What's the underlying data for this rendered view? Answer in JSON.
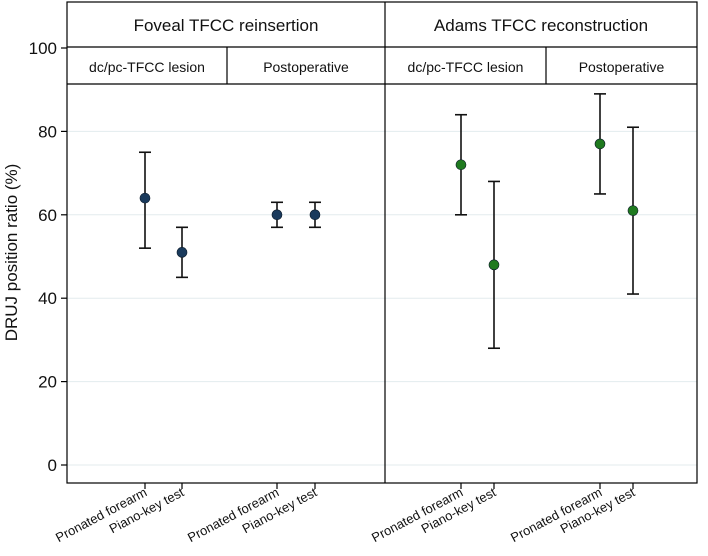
{
  "chart_data": {
    "type": "scatter",
    "ylabel": "DRUJ position ratio (%)",
    "ylim": [
      0,
      100
    ],
    "yticks": [
      0,
      20,
      40,
      60,
      80,
      100
    ],
    "grid": true,
    "panels": [
      {
        "title": "Foveal TFCC reinsertion",
        "marker_color": "#1a3a5c",
        "groups": [
          {
            "label": "dc/pc-TFCC lesion",
            "points": [
              {
                "x": "Pronated forearm",
                "y": 64,
                "low": 52,
                "high": 75
              },
              {
                "x": "Piano-key test",
                "y": 51,
                "low": 45,
                "high": 57
              }
            ]
          },
          {
            "label": "Postoperative",
            "points": [
              {
                "x": "Pronated forearm",
                "y": 60,
                "low": 57,
                "high": 63
              },
              {
                "x": "Piano-key test",
                "y": 60,
                "low": 57,
                "high": 63
              }
            ]
          }
        ]
      },
      {
        "title": "Adams TFCC reconstruction",
        "marker_color": "#1f7a1f",
        "groups": [
          {
            "label": "dc/pc-TFCC lesion",
            "points": [
              {
                "x": "Pronated forearm",
                "y": 72,
                "low": 60,
                "high": 84
              },
              {
                "x": "Piano-key test",
                "y": 48,
                "low": 28,
                "high": 68
              }
            ]
          },
          {
            "label": "Postoperative",
            "points": [
              {
                "x": "Pronated forearm",
                "y": 77,
                "low": 65,
                "high": 89
              },
              {
                "x": "Piano-key test",
                "y": 61,
                "low": 41,
                "high": 81
              }
            ]
          }
        ]
      }
    ]
  }
}
